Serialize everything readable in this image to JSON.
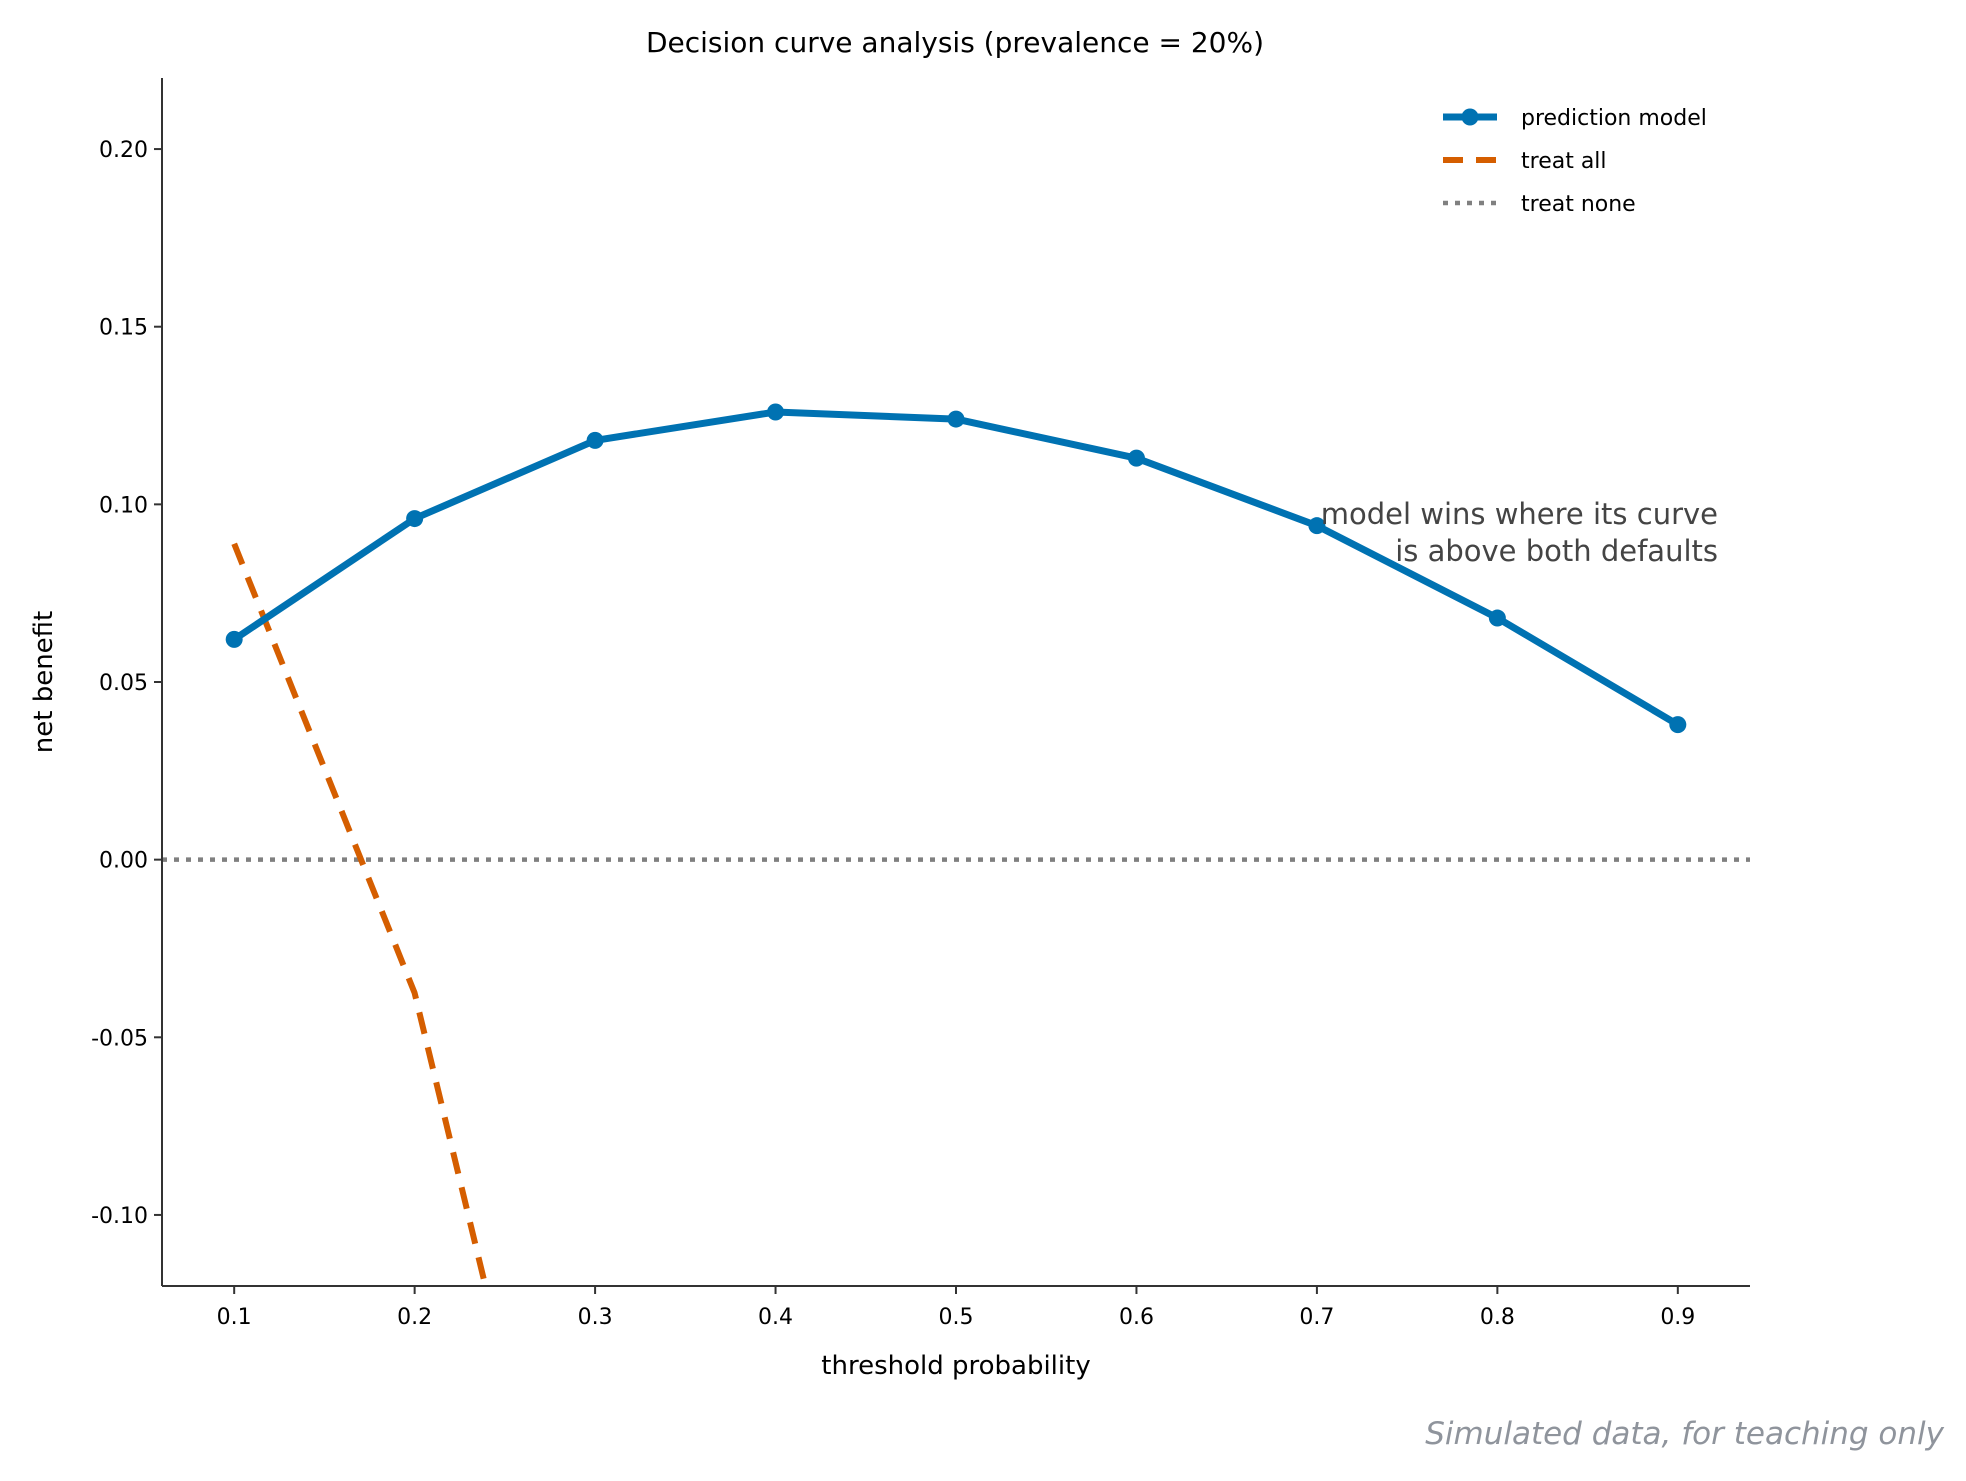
{
  "chart_data": {
    "type": "line",
    "title": "Decision curve analysis (prevalence = 20%)",
    "xlabel": "threshold probability",
    "ylabel": "net benefit",
    "xlim": [
      0.06,
      0.94
    ],
    "ylim": [
      -0.12,
      0.22
    ],
    "xticks": [
      0.1,
      0.2,
      0.3,
      0.4,
      0.5,
      0.6,
      0.7,
      0.8,
      0.9
    ],
    "xtick_labels": [
      "0.1",
      "0.2",
      "0.3",
      "0.4",
      "0.5",
      "0.6",
      "0.7",
      "0.8",
      "0.9"
    ],
    "yticks": [
      -0.1,
      -0.05,
      0.0,
      0.05,
      0.1,
      0.15,
      0.2
    ],
    "ytick_labels": [
      "-0.10",
      "-0.05",
      "0.00",
      "0.05",
      "0.10",
      "0.15",
      "0.20"
    ],
    "grid": false,
    "legend_position": "top-right",
    "series": [
      {
        "name": "prediction model",
        "color": "#0072b2",
        "style": "solid",
        "markers": true,
        "x": [
          0.1,
          0.2,
          0.3,
          0.4,
          0.5,
          0.6,
          0.7,
          0.8,
          0.9
        ],
        "y": [
          0.062,
          0.096,
          0.118,
          0.126,
          0.124,
          0.113,
          0.094,
          0.068,
          0.038
        ]
      },
      {
        "name": "treat all",
        "color": "#d55e00",
        "style": "dashed",
        "markers": false,
        "x": [
          0.1,
          0.2,
          0.24
        ],
        "y": [
          0.0889,
          -0.0375,
          -0.1216
        ]
      },
      {
        "name": "treat none",
        "color": "#808080",
        "style": "dotted",
        "markers": false,
        "x": [
          0.06,
          0.94
        ],
        "y": [
          0.0,
          0.0
        ]
      }
    ],
    "annotation": [
      "model wins where its curve",
      "is above both defaults"
    ],
    "footnote": "Simulated data, for teaching only"
  }
}
